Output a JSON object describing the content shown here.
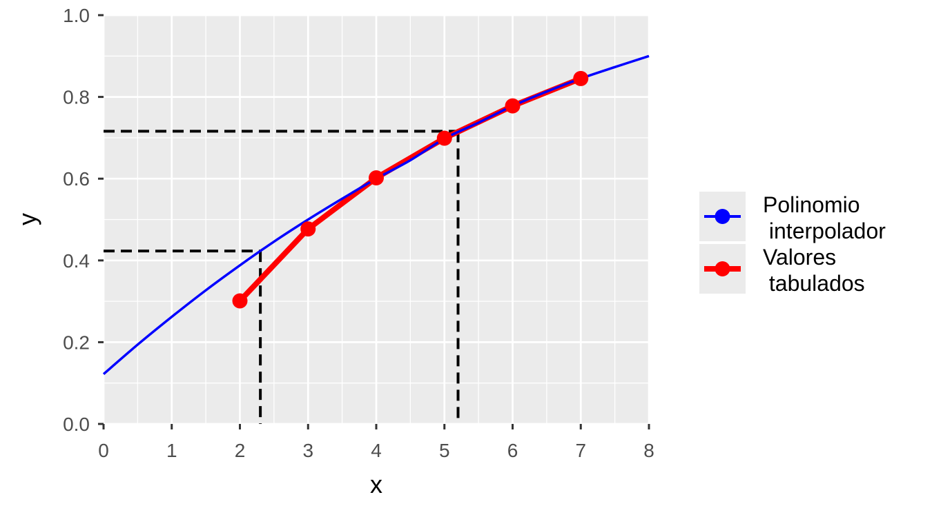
{
  "chart_data": {
    "type": "line",
    "title": "",
    "xlabel": "x",
    "ylabel": "y",
    "xlim": [
      0,
      8
    ],
    "ylim": [
      0,
      1.0
    ],
    "x_ticks": [
      0,
      1,
      2,
      3,
      4,
      5,
      6,
      7,
      8
    ],
    "x_tick_labels": [
      "0",
      "1",
      "2",
      "3",
      "4",
      "5",
      "6",
      "7",
      "8"
    ],
    "y_ticks": [
      0,
      0.2,
      0.4,
      0.6,
      0.8,
      1.0
    ],
    "y_tick_labels": [
      "0.0",
      "0.2",
      "0.4",
      "0.6",
      "0.8",
      "1.0"
    ],
    "grid": true,
    "legend_position": "right",
    "series": [
      {
        "name": "Polinomio\n interpolador",
        "legend_lines": [
          "Polinomio",
          " interpolador"
        ],
        "color": "#0000ff",
        "kind": "curve",
        "x": [
          0,
          0.5,
          1,
          1.5,
          2,
          2.5,
          3,
          3.5,
          4,
          4.5,
          5,
          5.5,
          6,
          6.5,
          7,
          7.5,
          8
        ],
        "values": [
          0.122,
          0.194,
          0.262,
          0.327,
          0.388,
          0.446,
          0.5,
          0.551,
          0.6,
          0.645,
          0.698,
          0.737,
          0.778,
          0.813,
          0.845,
          0.873,
          0.9
        ]
      },
      {
        "name": "Valores\n tabulados",
        "legend_lines": [
          "Valores",
          " tabulados"
        ],
        "color": "#ff0000",
        "kind": "line+points",
        "x": [
          2,
          3,
          4,
          5,
          6,
          7
        ],
        "values": [
          0.301,
          0.477,
          0.602,
          0.699,
          0.778,
          0.845
        ]
      }
    ],
    "reference_lines": [
      {
        "name": "ref-low",
        "x": 2.3,
        "y": 0.423
      },
      {
        "name": "ref-high",
        "x": 5.2,
        "y": 0.716
      }
    ]
  }
}
